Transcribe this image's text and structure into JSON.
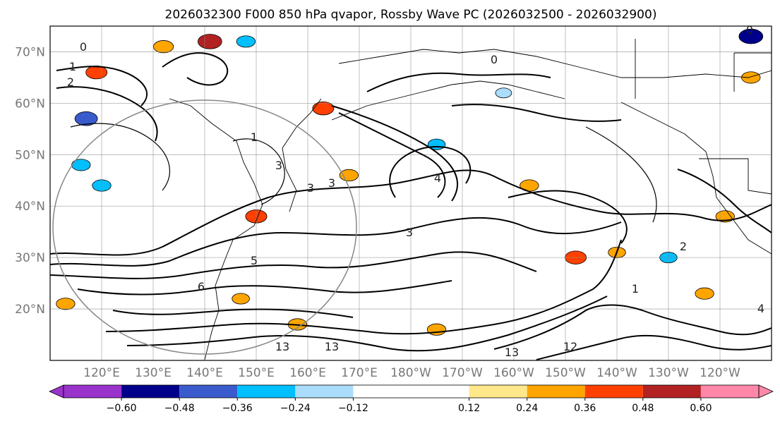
{
  "chart_data": {
    "type": "heatmap",
    "title": "2026032300 F000 850 hPa qvapor, Rossby Wave PC (2026032500 - 2026032900)",
    "lat_range": [
      10,
      75
    ],
    "lon_range_east": [
      110,
      250
    ],
    "lat_ticks": [
      {
        "value": 20,
        "label": "20°N"
      },
      {
        "value": 30,
        "label": "30°N"
      },
      {
        "value": 40,
        "label": "40°N"
      },
      {
        "value": 50,
        "label": "50°N"
      },
      {
        "value": 60,
        "label": "60°N"
      },
      {
        "value": 70,
        "label": "70°N"
      }
    ],
    "lon_ticks": [
      {
        "value": 120,
        "label": "120°E"
      },
      {
        "value": 130,
        "label": "130°E"
      },
      {
        "value": 140,
        "label": "140°E"
      },
      {
        "value": 150,
        "label": "150°E"
      },
      {
        "value": 160,
        "label": "160°E"
      },
      {
        "value": 170,
        "label": "170°E"
      },
      {
        "value": 180,
        "label": "180°W"
      },
      {
        "value": 190,
        "label": "170°W"
      },
      {
        "value": 200,
        "label": "160°W"
      },
      {
        "value": 210,
        "label": "150°W"
      },
      {
        "value": 220,
        "label": "140°W"
      },
      {
        "value": 230,
        "label": "130°W"
      },
      {
        "value": 240,
        "label": "120°W"
      }
    ],
    "colorbar": {
      "extend": "both",
      "under_color": "#9933cc",
      "over_color": "#ff88aa",
      "bins": [
        {
          "from": -0.72,
          "to": -0.6,
          "color": "#9933cc"
        },
        {
          "from": -0.6,
          "to": -0.48,
          "color": "#00008b"
        },
        {
          "from": -0.48,
          "to": -0.36,
          "color": "#3a5bcc"
        },
        {
          "from": -0.36,
          "to": -0.24,
          "color": "#00bfff"
        },
        {
          "from": -0.24,
          "to": -0.12,
          "color": "#aadcfb"
        },
        {
          "from": -0.12,
          "to": 0.12,
          "color": "#ffffff"
        },
        {
          "from": 0.12,
          "to": 0.24,
          "color": "#ffe88a"
        },
        {
          "from": 0.24,
          "to": 0.36,
          "color": "#ffa500"
        },
        {
          "from": 0.36,
          "to": 0.48,
          "color": "#ff4000"
        },
        {
          "from": 0.48,
          "to": 0.6,
          "color": "#b22222"
        },
        {
          "from": 0.6,
          "to": 0.72,
          "color": "#ff88aa"
        }
      ],
      "tick_labels": [
        "−0.60",
        "−0.48",
        "−0.36",
        "−0.24",
        "−0.12",
        "0.12",
        "0.24",
        "0.36",
        "0.48",
        "0.60"
      ]
    },
    "contour_labels": [
      "1",
      "1",
      "2",
      "3",
      "3",
      "3",
      "3",
      "4",
      "5",
      "6",
      "13",
      "13",
      "13",
      "12",
      "4",
      "2",
      "1",
      "0",
      "0",
      "0"
    ],
    "color_patches": [
      {
        "lon": 132,
        "lat": 71,
        "value": 0.35
      },
      {
        "lon": 141,
        "lat": 72,
        "value": 0.5
      },
      {
        "lon": 148,
        "lat": 72,
        "value": -0.3
      },
      {
        "lon": 119,
        "lat": 66,
        "value": 0.4
      },
      {
        "lon": 117,
        "lat": 57,
        "value": -0.45
      },
      {
        "lon": 116,
        "lat": 48,
        "value": -0.3
      },
      {
        "lon": 150,
        "lat": 38,
        "value": 0.4
      },
      {
        "lon": 163,
        "lat": 59,
        "value": 0.4
      },
      {
        "lon": 168,
        "lat": 46,
        "value": 0.3
      },
      {
        "lon": 185,
        "lat": 52,
        "value": -0.25
      },
      {
        "lon": 203,
        "lat": 44,
        "value": 0.3
      },
      {
        "lon": 246,
        "lat": 73,
        "value": -0.5
      },
      {
        "lon": 212,
        "lat": 30,
        "value": 0.4
      },
      {
        "lon": 185,
        "lat": 16,
        "value": 0.3
      },
      {
        "lon": 158,
        "lat": 17,
        "value": 0.3
      },
      {
        "lon": 113,
        "lat": 21,
        "value": 0.3
      },
      {
        "lon": 220,
        "lat": 31,
        "value": 0.25
      },
      {
        "lon": 230,
        "lat": 30,
        "value": -0.25
      },
      {
        "lon": 246,
        "lat": 65,
        "value": 0.3
      },
      {
        "lon": 120,
        "lat": 44,
        "value": -0.3
      },
      {
        "lon": 147,
        "lat": 22,
        "value": 0.25
      },
      {
        "lon": 198,
        "lat": 62,
        "value": -0.2
      },
      {
        "lon": 241,
        "lat": 38,
        "value": 0.3
      },
      {
        "lon": 237,
        "lat": 23,
        "value": 0.3
      }
    ]
  }
}
